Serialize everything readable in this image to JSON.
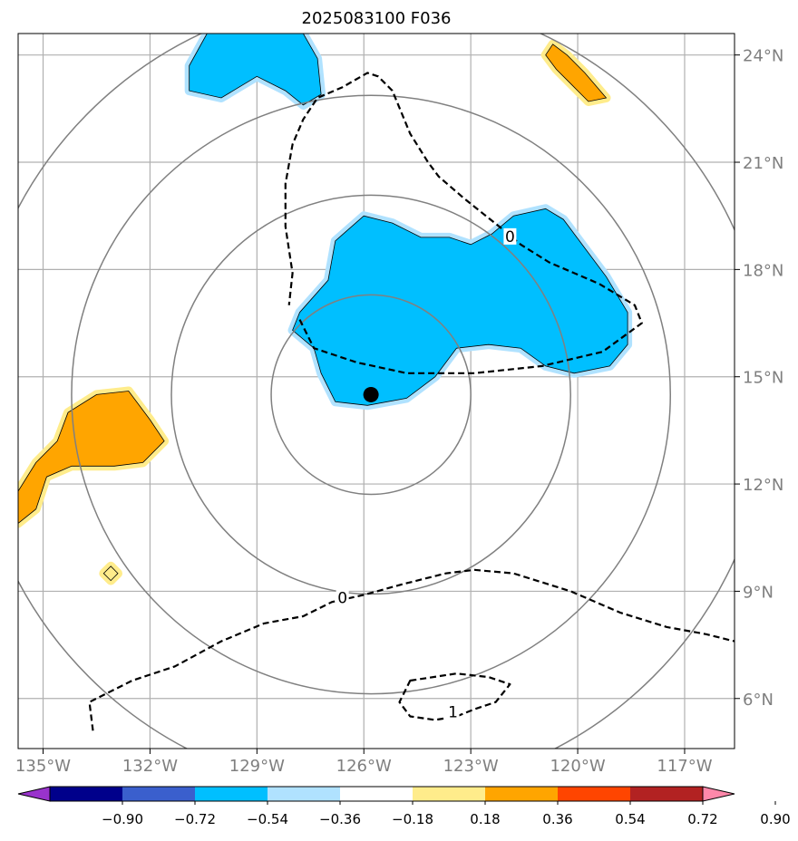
{
  "chart_data": {
    "type": "contour-map",
    "title": "2025083100 F036",
    "xaxis": {
      "range": [
        -135.7,
        -115.6
      ],
      "ticks": [
        -135,
        -132,
        -129,
        -126,
        -123,
        -120,
        -117
      ],
      "tick_labels": [
        "135°W",
        "132°W",
        "129°W",
        "126°W",
        "123°W",
        "120°W",
        "117°W"
      ]
    },
    "yaxis": {
      "range": [
        4.6,
        24.6
      ],
      "ticks": [
        6,
        9,
        12,
        15,
        18,
        21,
        24
      ],
      "tick_labels": [
        "6°N",
        "9°N",
        "12°N",
        "15°N",
        "18°N",
        "21°N",
        "24°N"
      ],
      "position": "right"
    },
    "grid": true,
    "center": {
      "lon": -125.8,
      "lat": 14.5
    },
    "range_rings_deg": [
      2.8,
      5.6,
      8.4,
      11.2
    ],
    "colorbar": {
      "ticks": [
        -0.9,
        -0.72,
        -0.54,
        -0.36,
        -0.18,
        0.18,
        0.36,
        0.54,
        0.72,
        0.9
      ],
      "tick_labels": [
        "−0.90",
        "−0.72",
        "−0.54",
        "−0.36",
        "−0.18",
        "0.18",
        "0.36",
        "0.54",
        "0.72",
        "0.90"
      ],
      "colors": [
        "#9933cc",
        "#00008b",
        "#3a5fcd",
        "#00bfff",
        "#b0e2ff",
        "#ffffff",
        "#ffec8b",
        "#ffa500",
        "#ff4500",
        "#b22222",
        "#ff88aa"
      ],
      "extend": "both"
    },
    "contour_labels": [
      "0",
      "0",
      "1"
    ],
    "shaded_regions": [
      {
        "name": "north-negative-blob",
        "level": -0.36,
        "points": [
          [
            -130.9,
            23.7
          ],
          [
            -130.4,
            24.6
          ],
          [
            -127.7,
            24.6
          ],
          [
            -127.3,
            23.9
          ],
          [
            -127.2,
            22.9
          ],
          [
            -127.7,
            22.6
          ],
          [
            -128.2,
            23.0
          ],
          [
            -129.0,
            23.4
          ],
          [
            -130.0,
            22.8
          ],
          [
            -130.9,
            23.0
          ]
        ]
      },
      {
        "name": "central-negative-blob",
        "level": -0.36,
        "points": [
          [
            -127.8,
            16.8
          ],
          [
            -127.0,
            17.7
          ],
          [
            -126.8,
            18.8
          ],
          [
            -126.0,
            19.5
          ],
          [
            -125.2,
            19.3
          ],
          [
            -124.4,
            18.9
          ],
          [
            -123.6,
            18.9
          ],
          [
            -123.0,
            18.7
          ],
          [
            -122.4,
            19.0
          ],
          [
            -121.8,
            19.5
          ],
          [
            -120.9,
            19.7
          ],
          [
            -120.4,
            19.4
          ],
          [
            -119.8,
            18.6
          ],
          [
            -119.2,
            17.8
          ],
          [
            -118.6,
            16.8
          ],
          [
            -118.6,
            15.9
          ],
          [
            -119.1,
            15.3
          ],
          [
            -120.1,
            15.1
          ],
          [
            -120.9,
            15.3
          ],
          [
            -121.6,
            15.8
          ],
          [
            -122.5,
            15.9
          ],
          [
            -123.4,
            15.8
          ],
          [
            -124.0,
            15.0
          ],
          [
            -124.8,
            14.4
          ],
          [
            -125.9,
            14.2
          ],
          [
            -126.8,
            14.3
          ],
          [
            -127.2,
            15.1
          ],
          [
            -127.4,
            15.8
          ],
          [
            -128.0,
            16.3
          ]
        ]
      },
      {
        "name": "west-positive-blob",
        "level": 0.36,
        "points": [
          [
            -135.7,
            11.8
          ],
          [
            -135.2,
            12.6
          ],
          [
            -134.6,
            13.2
          ],
          [
            -134.3,
            14.0
          ],
          [
            -133.5,
            14.5
          ],
          [
            -132.6,
            14.6
          ],
          [
            -132.0,
            13.8
          ],
          [
            -131.6,
            13.2
          ],
          [
            -132.2,
            12.6
          ],
          [
            -133.0,
            12.5
          ],
          [
            -134.2,
            12.5
          ],
          [
            -134.9,
            12.2
          ],
          [
            -135.2,
            11.3
          ],
          [
            -135.7,
            10.9
          ]
        ]
      },
      {
        "name": "northeast-positive-blob",
        "level": 0.36,
        "points": [
          [
            -120.7,
            24.3
          ],
          [
            -120.3,
            24.0
          ],
          [
            -119.8,
            23.5
          ],
          [
            -119.2,
            22.8
          ],
          [
            -119.7,
            22.7
          ],
          [
            -120.2,
            23.2
          ],
          [
            -120.6,
            23.6
          ],
          [
            -120.9,
            24.0
          ]
        ]
      },
      {
        "name": "small-positive-dot",
        "level": 0.18,
        "points": [
          [
            -133.1,
            9.7
          ],
          [
            -132.9,
            9.5
          ],
          [
            -133.1,
            9.3
          ],
          [
            -133.3,
            9.5
          ]
        ]
      }
    ],
    "dashed_contours": [
      {
        "name": "zero-contour-north",
        "label": "0",
        "label_at": [
          -121.9,
          18.9
        ],
        "points": [
          [
            -127.8,
            16.6
          ],
          [
            -127.4,
            15.8
          ],
          [
            -126.2,
            15.4
          ],
          [
            -124.8,
            15.1
          ],
          [
            -122.9,
            15.1
          ],
          [
            -121.0,
            15.3
          ],
          [
            -119.3,
            15.7
          ],
          [
            -118.2,
            16.5
          ],
          [
            -118.4,
            17.0
          ],
          [
            -119.4,
            17.6
          ],
          [
            -120.8,
            18.2
          ],
          [
            -121.6,
            18.7
          ],
          [
            -122.2,
            19.2
          ],
          [
            -122.7,
            19.6
          ],
          [
            -123.2,
            20.0
          ],
          [
            -123.9,
            20.6
          ],
          [
            -124.2,
            21.0
          ],
          [
            -124.7,
            21.8
          ],
          [
            -125.2,
            23.0
          ],
          [
            -125.6,
            23.4
          ],
          [
            -125.9,
            23.5
          ],
          [
            -126.6,
            23.1
          ],
          [
            -127.3,
            22.8
          ],
          [
            -127.7,
            22.2
          ],
          [
            -128.0,
            21.5
          ],
          [
            -128.2,
            20.4
          ],
          [
            -128.2,
            19.2
          ],
          [
            -128.0,
            17.9
          ],
          [
            -128.1,
            17.0
          ]
        ]
      },
      {
        "name": "zero-contour-south",
        "label": "0",
        "label_at": [
          -126.6,
          8.8
        ],
        "points": [
          [
            -133.6,
            5.1
          ],
          [
            -133.7,
            5.9
          ],
          [
            -132.5,
            6.5
          ],
          [
            -131.3,
            6.9
          ],
          [
            -130.0,
            7.6
          ],
          [
            -128.8,
            8.1
          ],
          [
            -127.7,
            8.3
          ],
          [
            -126.9,
            8.7
          ],
          [
            -126.0,
            8.9
          ],
          [
            -124.9,
            9.2
          ],
          [
            -123.7,
            9.5
          ],
          [
            -122.9,
            9.6
          ],
          [
            -121.8,
            9.5
          ],
          [
            -120.2,
            9.0
          ],
          [
            -118.8,
            8.4
          ],
          [
            -117.5,
            8.0
          ],
          [
            -116.4,
            7.8
          ],
          [
            -115.6,
            7.6
          ]
        ]
      },
      {
        "name": "one-contour",
        "label": "1",
        "label_at": [
          -123.5,
          5.6
        ],
        "points": [
          [
            -124.7,
            6.5
          ],
          [
            -123.4,
            6.7
          ],
          [
            -122.5,
            6.6
          ],
          [
            -121.9,
            6.4
          ],
          [
            -122.3,
            5.9
          ],
          [
            -122.9,
            5.7
          ],
          [
            -123.4,
            5.5
          ],
          [
            -124.0,
            5.4
          ],
          [
            -124.7,
            5.5
          ],
          [
            -125.0,
            5.9
          ],
          [
            -124.8,
            6.3
          ]
        ]
      }
    ],
    "markers": [
      {
        "name": "storm-center",
        "lon": -125.8,
        "lat": 14.5
      }
    ]
  }
}
